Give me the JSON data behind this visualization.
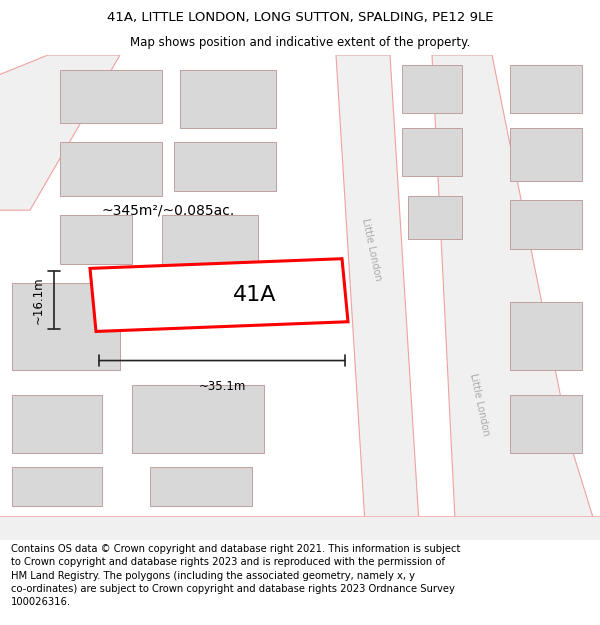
{
  "title_line1": "41A, LITTLE LONDON, LONG SUTTON, SPALDING, PE12 9LE",
  "title_line2": "Map shows position and indicative extent of the property.",
  "footer_text": "Contains OS data © Crown copyright and database right 2021. This information is subject\nto Crown copyright and database rights 2023 and is reproduced with the permission of\nHM Land Registry. The polygons (including the associated geometry, namely x, y\nco-ordinates) are subject to Crown copyright and database rights 2023 Ordnance Survey\n100026316.",
  "bg_color": "#ffffff",
  "highlight_color": "#ff0000",
  "road_fill": "#f0f0f0",
  "road_edge": "#f0a0a0",
  "building_fill": "#d8d8d8",
  "building_edge": "#c0a0a0",
  "text_color": "#000000",
  "dim_color": "#222222",
  "street_label_color": "#aaaaaa",
  "label_41a": "41A",
  "area_label": "~345m²/~0.085ac.",
  "width_label": "~35.1m",
  "height_label": "~16.1m",
  "title_fontsize": 9.5,
  "subtitle_fontsize": 8.5,
  "footer_fontsize": 7.2,
  "label_fontsize": 16,
  "dim_fontsize": 8.5,
  "area_fontsize": 10,
  "street_fontsize": 7
}
